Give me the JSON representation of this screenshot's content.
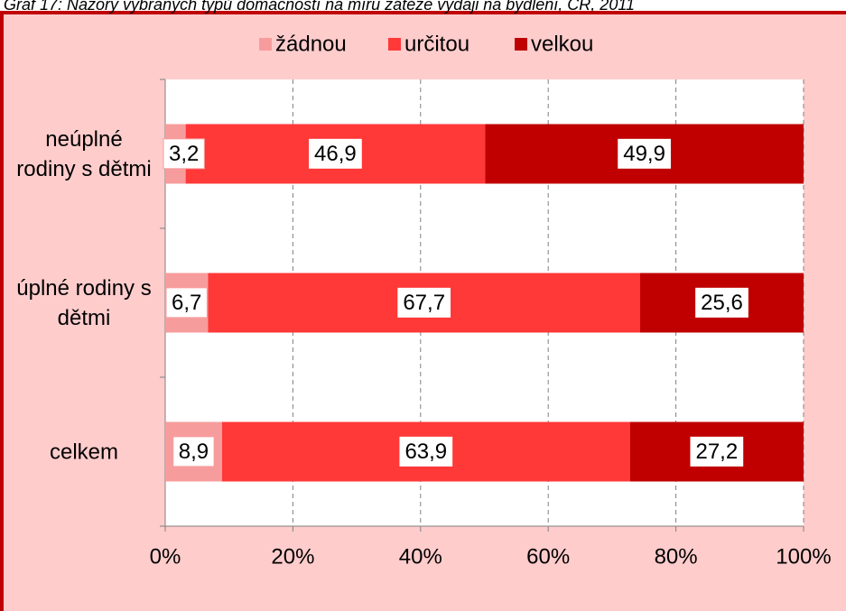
{
  "chart_data": {
    "type": "stacked-bar-horizontal",
    "title": "Graf 17: Názory vybraných typů domácností na míru zátěže výdaji na bydlení, ČR, 2011",
    "categories": [
      "neúplné rodiny s dětmi",
      "úplné rodiny s dětmi",
      "celkem"
    ],
    "series": [
      {
        "name": "žádnou",
        "color": "#f79c9c",
        "values": [
          3.2,
          6.7,
          8.9
        ],
        "value_labels": [
          "3,2",
          "6,7",
          "8,9"
        ]
      },
      {
        "name": "určitou",
        "color": "#ff3838",
        "values": [
          46.9,
          67.7,
          63.9
        ],
        "value_labels": [
          "46,9",
          "67,7",
          "63,9"
        ]
      },
      {
        "name": "velkou",
        "color": "#c00000",
        "values": [
          49.9,
          25.6,
          27.2
        ],
        "value_labels": [
          "49,9",
          "25,6",
          "27,2"
        ]
      }
    ],
    "xlim": [
      0,
      100
    ],
    "xticks": [
      {
        "value": 0,
        "label": "0%"
      },
      {
        "value": 20,
        "label": "20%"
      },
      {
        "value": 40,
        "label": "40%"
      },
      {
        "value": 60,
        "label": "60%"
      },
      {
        "value": 80,
        "label": "80%"
      },
      {
        "value": 100,
        "label": "100%"
      }
    ],
    "grid": true,
    "legend": "top"
  }
}
